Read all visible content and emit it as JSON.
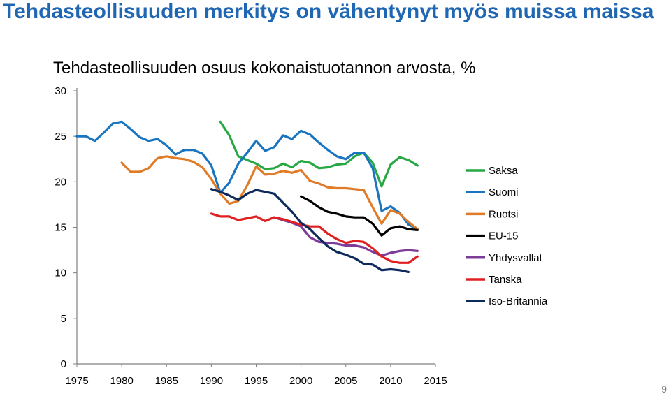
{
  "slide": {
    "title": "Tehdasteollisuuden merkitys on vähentynyt myös muissa maissa",
    "page_number": "9"
  },
  "chart_data": {
    "type": "line",
    "title": "Tehdasteollisuuden osuus kokonaistuotannon arvosta, %",
    "xlabel": "",
    "ylabel": "",
    "xlim": [
      1975,
      2015
    ],
    "ylim": [
      0,
      30
    ],
    "x_ticks": [
      1975,
      1980,
      1985,
      1990,
      1995,
      2000,
      2005,
      2010,
      2015
    ],
    "y_ticks": [
      0,
      5,
      10,
      15,
      20,
      25,
      30
    ],
    "grid": false,
    "legend_position": "right",
    "series": [
      {
        "name": "Saksa",
        "color": "#27a844",
        "x": [
          1991,
          1992,
          1993,
          1994,
          1995,
          1996,
          1997,
          1998,
          1999,
          2000,
          2001,
          2002,
          2003,
          2004,
          2005,
          2006,
          2007,
          2008,
          2009,
          2010,
          2011,
          2012,
          2013
        ],
        "y": [
          26.6,
          25.1,
          22.8,
          22.4,
          22.0,
          21.4,
          21.5,
          22.0,
          21.6,
          22.3,
          22.1,
          21.5,
          21.6,
          21.9,
          22.0,
          22.8,
          23.2,
          22.1,
          19.5,
          21.9,
          22.7,
          22.4,
          21.8
        ]
      },
      {
        "name": "Suomi",
        "color": "#1a75c0",
        "x": [
          1975,
          1976,
          1977,
          1978,
          1979,
          1980,
          1981,
          1982,
          1983,
          1984,
          1985,
          1986,
          1987,
          1988,
          1989,
          1990,
          1991,
          1992,
          1993,
          1994,
          1995,
          1996,
          1997,
          1998,
          1999,
          2000,
          2001,
          2002,
          2003,
          2004,
          2005,
          2006,
          2007,
          2008,
          2009,
          2010,
          2011,
          2012,
          2013
        ],
        "y": [
          25.0,
          25.0,
          24.5,
          25.4,
          26.4,
          26.6,
          25.8,
          24.9,
          24.5,
          24.7,
          24.0,
          23.0,
          23.5,
          23.5,
          23.1,
          21.8,
          18.8,
          19.9,
          22.0,
          23.2,
          24.5,
          23.4,
          23.8,
          25.1,
          24.7,
          25.6,
          25.2,
          24.3,
          23.5,
          22.8,
          22.5,
          23.2,
          23.2,
          21.5,
          16.8,
          17.3,
          16.6,
          15.3,
          14.8
        ]
      },
      {
        "name": "Ruotsi",
        "color": "#e07b28",
        "x": [
          1980,
          1981,
          1982,
          1983,
          1984,
          1985,
          1986,
          1987,
          1988,
          1989,
          1990,
          1991,
          1992,
          1993,
          1994,
          1995,
          1996,
          1997,
          1998,
          1999,
          2000,
          2001,
          2002,
          2003,
          2004,
          2005,
          2006,
          2007,
          2008,
          2009,
          2010,
          2011,
          2012,
          2013
        ],
        "y": [
          22.1,
          21.1,
          21.1,
          21.5,
          22.6,
          22.8,
          22.6,
          22.5,
          22.2,
          21.6,
          20.3,
          18.7,
          17.6,
          17.9,
          19.6,
          21.7,
          20.8,
          20.9,
          21.2,
          21.0,
          21.3,
          20.1,
          19.8,
          19.4,
          19.3,
          19.3,
          19.2,
          19.1,
          17.2,
          15.4,
          16.9,
          16.5,
          15.6,
          14.8
        ]
      },
      {
        "name": "EU-15",
        "color": "#000000",
        "x": [
          2000,
          2001,
          2002,
          2003,
          2004,
          2005,
          2006,
          2007,
          2008,
          2009,
          2010,
          2011,
          2012,
          2013
        ],
        "y": [
          18.4,
          17.9,
          17.2,
          16.7,
          16.5,
          16.2,
          16.1,
          16.1,
          15.4,
          14.1,
          14.9,
          15.1,
          14.8,
          14.7
        ]
      },
      {
        "name": "Yhdysvallat",
        "color": "#7d3c98",
        "x": [
          1997,
          1998,
          1999,
          2000,
          2001,
          2002,
          2003,
          2004,
          2005,
          2006,
          2007,
          2008,
          2009,
          2010,
          2011,
          2012,
          2013
        ],
        "y": [
          16.1,
          15.8,
          15.5,
          15.1,
          13.9,
          13.4,
          13.3,
          13.2,
          13.0,
          13.0,
          12.8,
          12.3,
          11.9,
          12.2,
          12.4,
          12.5,
          12.4
        ]
      },
      {
        "name": "Tanska",
        "color": "#e02020",
        "x": [
          1990,
          1991,
          1992,
          1993,
          1994,
          1995,
          1996,
          1997,
          1998,
          1999,
          2000,
          2001,
          2002,
          2003,
          2004,
          2005,
          2006,
          2007,
          2008,
          2009,
          2010,
          2011,
          2012,
          2013
        ],
        "y": [
          16.5,
          16.2,
          16.2,
          15.8,
          16.0,
          16.2,
          15.7,
          16.1,
          15.9,
          15.6,
          15.3,
          15.1,
          15.1,
          14.3,
          13.7,
          13.3,
          13.5,
          13.4,
          12.7,
          11.8,
          11.3,
          11.1,
          11.1,
          11.8
        ]
      },
      {
        "name": "Iso-Britannia",
        "color": "#0d2a5c",
        "x": [
          1990,
          1991,
          1992,
          1993,
          1994,
          1995,
          1996,
          1997,
          1998,
          1999,
          2000,
          2001,
          2002,
          2003,
          2004,
          2005,
          2006,
          2007,
          2008,
          2009,
          2010,
          2011,
          2012
        ],
        "y": [
          19.2,
          18.9,
          18.5,
          18.0,
          18.7,
          19.1,
          18.9,
          18.7,
          17.7,
          16.7,
          15.5,
          14.8,
          13.8,
          12.9,
          12.3,
          12.0,
          11.6,
          11.0,
          10.9,
          10.3,
          10.4,
          10.3,
          10.1
        ]
      }
    ]
  }
}
